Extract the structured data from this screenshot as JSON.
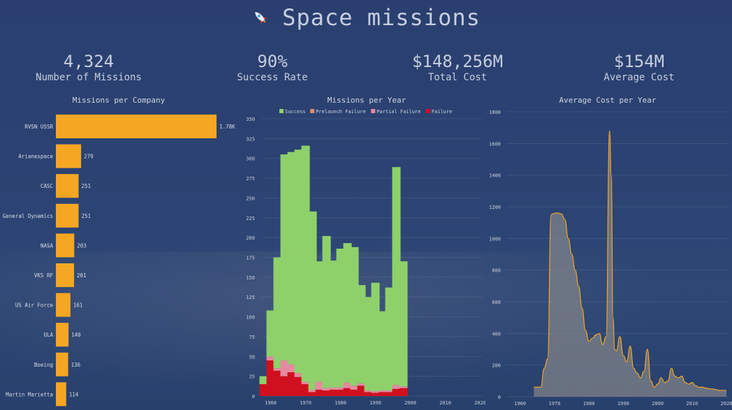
{
  "header": {
    "title": "Space missions",
    "icon": "rocket-icon"
  },
  "kpis": [
    {
      "value": "4,324",
      "label": "Number of Missions"
    },
    {
      "value": "90%",
      "label": "Success Rate"
    },
    {
      "value": "$148,256M",
      "label": "Total Cost"
    },
    {
      "value": "$154M",
      "label": "Average Cost"
    }
  ],
  "colors": {
    "bar_orange": "#f5a623",
    "success": "#8ed16a",
    "prelaunch": "#e88a6a",
    "partial": "#e58aa0",
    "failure": "#d0101e",
    "line": "#f5a623"
  },
  "chart_data": [
    {
      "type": "bar",
      "orientation": "horizontal",
      "title": "Missions per Company",
      "categories": [
        "RVSN USSR",
        "Arianespace",
        "CASC",
        "General Dynamics",
        "NASA",
        "VKS RF",
        "US Air Force",
        "ULA",
        "Boeing",
        "Martin Marietta"
      ],
      "values": [
        1777,
        279,
        251,
        251,
        203,
        201,
        161,
        140,
        136,
        114
      ],
      "value_labels": [
        "1.78K",
        "279",
        "251",
        "251",
        "203",
        "201",
        "161",
        "140",
        "136",
        "114"
      ]
    },
    {
      "type": "bar",
      "stacked": true,
      "title": "Missions per Year",
      "legend": [
        "Success",
        "Prelaunch Failure",
        "Partial Failure",
        "Failure"
      ],
      "legend_position": "top",
      "x": [
        1958,
        1960,
        1962,
        1964,
        1966,
        1968,
        1970,
        1972,
        1974,
        1976,
        1978,
        1980,
        1982,
        1984,
        1986,
        1988,
        1990,
        1992,
        1994,
        1996,
        1998,
        2000,
        2002,
        2004,
        2006,
        2008,
        2010,
        2012,
        2014,
        2016,
        2018,
        2020
      ],
      "x_ticks": [
        "1960",
        "1970",
        "1980",
        "1990",
        "2000",
        "2010",
        "2020"
      ],
      "series": [
        {
          "name": "Success",
          "values": [
            10,
            58,
            140,
            260,
            268,
            282,
            298,
            225,
            152,
            192,
            160,
            175,
            176,
            175,
            124,
            118,
            137,
            100,
            130,
            275,
            158,
            0,
            0,
            0,
            0,
            0,
            0,
            0,
            0,
            0,
            0,
            0
          ]
        },
        {
          "name": "Prelaunch Failure",
          "values": [
            0,
            0,
            0,
            0,
            0,
            0,
            0,
            0,
            0,
            0,
            0,
            0,
            0,
            0,
            0,
            0,
            0,
            0,
            0,
            0,
            0,
            0,
            0,
            0,
            0,
            0,
            0,
            0,
            0,
            0,
            0,
            0
          ]
        },
        {
          "name": "Partial Failure",
          "values": [
            0,
            5,
            3,
            20,
            10,
            5,
            3,
            3,
            10,
            3,
            3,
            3,
            7,
            5,
            3,
            2,
            2,
            2,
            2,
            5,
            2,
            0,
            0,
            0,
            0,
            0,
            0,
            0,
            0,
            0,
            0,
            0
          ]
        },
        {
          "name": "Failure",
          "values": [
            15,
            45,
            32,
            25,
            30,
            24,
            15,
            5,
            8,
            7,
            8,
            8,
            10,
            8,
            13,
            5,
            4,
            5,
            5,
            9,
            10,
            0,
            0,
            0,
            0,
            0,
            0,
            0,
            0,
            0,
            0,
            0
          ]
        }
      ],
      "ylim": [
        0,
        350
      ],
      "y_ticks": [
        0,
        25,
        50,
        75,
        100,
        125,
        150,
        175,
        200,
        225,
        250,
        275,
        300,
        325,
        350
      ]
    },
    {
      "type": "area",
      "title": "Average Cost per Year",
      "x": [
        1964,
        1966,
        1967,
        1968,
        1969,
        1970,
        1971,
        1972,
        1973,
        1974,
        1975,
        1976,
        1977,
        1978,
        1979,
        1980,
        1981,
        1982,
        1983,
        1984,
        1985,
        1986,
        1986.5,
        1987,
        1987.5,
        1988,
        1989,
        1990,
        1991,
        1992,
        1993,
        1994,
        1995,
        1996,
        1997,
        1998,
        1999,
        2000,
        2001,
        2002,
        2003,
        2004,
        2005,
        2006,
        2007,
        2008,
        2009,
        2010,
        2011,
        2012,
        2013,
        2014,
        2015,
        2016,
        2017,
        2018,
        2019,
        2020
      ],
      "y": [
        60,
        60,
        180,
        240,
        1150,
        1160,
        1160,
        1155,
        1120,
        1000,
        900,
        800,
        700,
        560,
        420,
        350,
        370,
        390,
        400,
        330,
        380,
        1680,
        1400,
        500,
        300,
        290,
        380,
        260,
        220,
        320,
        180,
        150,
        120,
        160,
        300,
        100,
        60,
        80,
        120,
        90,
        100,
        180,
        130,
        120,
        130,
        90,
        80,
        90,
        70,
        60,
        60,
        55,
        50,
        50,
        45,
        40,
        40,
        40
      ],
      "ylim": [
        0,
        1800
      ],
      "y_ticks": [
        0,
        200,
        400,
        600,
        800,
        1000,
        1200,
        1400,
        1600,
        1800
      ],
      "x_ticks": [
        "1960",
        "1970",
        "1980",
        "1990",
        "2000",
        "2010",
        "2020"
      ]
    }
  ]
}
